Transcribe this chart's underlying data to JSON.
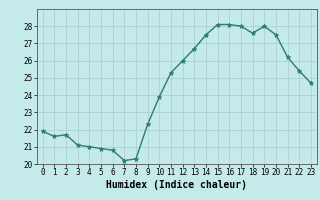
{
  "x": [
    0,
    1,
    2,
    3,
    4,
    5,
    6,
    7,
    8,
    9,
    10,
    11,
    12,
    13,
    14,
    15,
    16,
    17,
    18,
    19,
    20,
    21,
    22,
    23
  ],
  "y": [
    21.9,
    21.6,
    21.7,
    21.1,
    21.0,
    20.9,
    20.8,
    20.2,
    20.3,
    22.3,
    23.9,
    25.3,
    26.0,
    26.7,
    27.5,
    28.1,
    28.1,
    28.0,
    27.6,
    28.0,
    27.5,
    26.2,
    25.4,
    24.7
  ],
  "xlabel": "Humidex (Indice chaleur)",
  "bg_color": "#c5eaea",
  "line_color": "#2e7d6e",
  "marker_color": "#2e7d6e",
  "grid_color": "#a8cccc",
  "ylim": [
    20,
    29
  ],
  "xlim": [
    -0.5,
    23.5
  ],
  "yticks": [
    20,
    21,
    22,
    23,
    24,
    25,
    26,
    27,
    28
  ],
  "xticks": [
    0,
    1,
    2,
    3,
    4,
    5,
    6,
    7,
    8,
    9,
    10,
    11,
    12,
    13,
    14,
    15,
    16,
    17,
    18,
    19,
    20,
    21,
    22,
    23
  ],
  "tick_fontsize": 5.5,
  "xlabel_fontsize": 7.0
}
